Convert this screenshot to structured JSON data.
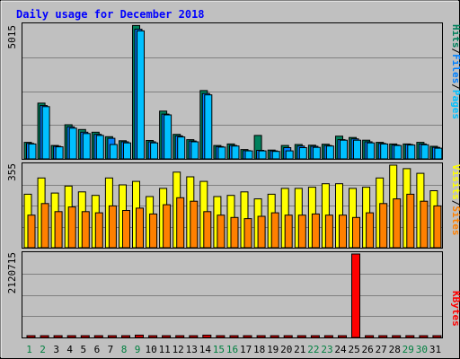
{
  "chart_data": [
    {
      "type": "bar",
      "panel": "top",
      "title": "Daily usage for December 2018",
      "ymax_label": "5015",
      "ylim": [
        0,
        5015
      ],
      "grid": true,
      "legend": [
        "Pages",
        "Files",
        "Hits"
      ],
      "categories": [
        "1",
        "2",
        "3",
        "4",
        "5",
        "6",
        "7",
        "8",
        "9",
        "10",
        "11",
        "12",
        "13",
        "14",
        "15",
        "16",
        "17",
        "18",
        "19",
        "20",
        "21",
        "22",
        "23",
        "24",
        "25",
        "26",
        "27",
        "28",
        "29",
        "30",
        "31"
      ],
      "series": [
        {
          "name": "Hits",
          "values": [
            620,
            2090,
            500,
            1280,
            1100,
            1000,
            830,
            680,
            5000,
            690,
            1790,
            920,
            720,
            2560,
            500,
            560,
            350,
            880,
            330,
            500,
            540,
            510,
            550,
            850,
            800,
            700,
            620,
            560,
            560,
            620,
            470
          ]
        },
        {
          "name": "Files",
          "values": [
            580,
            2000,
            470,
            1200,
            1000,
            920,
            770,
            640,
            4860,
            640,
            1680,
            860,
            670,
            2450,
            460,
            500,
            310,
            320,
            300,
            420,
            480,
            470,
            500,
            720,
            750,
            640,
            580,
            520,
            540,
            560,
            430
          ]
        },
        {
          "name": "Pages",
          "values": [
            560,
            1960,
            450,
            1150,
            950,
            880,
            540,
            600,
            4800,
            600,
            1650,
            820,
            640,
            2400,
            440,
            480,
            300,
            300,
            280,
            300,
            420,
            430,
            480,
            700,
            700,
            600,
            560,
            500,
            520,
            530,
            400
          ]
        }
      ]
    },
    {
      "type": "bar",
      "panel": "middle",
      "ymax_label": "355",
      "ylim": [
        0,
        355
      ],
      "grid": true,
      "legend": [
        "Sites",
        "Visits"
      ],
      "categories": [
        "1",
        "2",
        "3",
        "4",
        "5",
        "6",
        "7",
        "8",
        "9",
        "10",
        "11",
        "12",
        "13",
        "14",
        "15",
        "16",
        "17",
        "18",
        "19",
        "20",
        "21",
        "22",
        "23",
        "24",
        "25",
        "26",
        "27",
        "28",
        "29",
        "30",
        "31"
      ],
      "series": [
        {
          "name": "Visits",
          "values": [
            230,
            300,
            235,
            265,
            240,
            225,
            300,
            270,
            285,
            220,
            255,
            325,
            305,
            285,
            220,
            225,
            240,
            210,
            230,
            255,
            255,
            260,
            275,
            275,
            255,
            260,
            300,
            355,
            340,
            320,
            245
          ]
        },
        {
          "name": "Sites",
          "values": [
            140,
            190,
            155,
            175,
            155,
            150,
            180,
            160,
            170,
            145,
            185,
            215,
            200,
            155,
            140,
            130,
            125,
            135,
            150,
            140,
            140,
            145,
            140,
            140,
            130,
            150,
            190,
            210,
            230,
            200,
            180
          ]
        }
      ]
    },
    {
      "type": "bar",
      "panel": "bottom",
      "ymax_label": "2120715",
      "ylim": [
        0,
        2120715
      ],
      "grid": true,
      "legend": [
        "KBytes"
      ],
      "categories": [
        "1",
        "2",
        "3",
        "4",
        "5",
        "6",
        "7",
        "8",
        "9",
        "10",
        "11",
        "12",
        "13",
        "14",
        "15",
        "16",
        "17",
        "18",
        "19",
        "20",
        "21",
        "22",
        "23",
        "24",
        "25",
        "26",
        "27",
        "28",
        "29",
        "30",
        "31"
      ],
      "series": [
        {
          "name": "KBytes",
          "values": [
            20000,
            20000,
            20000,
            20000,
            20000,
            20000,
            20000,
            20000,
            60000,
            20000,
            40000,
            20000,
            20000,
            60000,
            20000,
            20000,
            20000,
            20000,
            20000,
            20000,
            20000,
            20000,
            20000,
            20000,
            2120715,
            20000,
            20000,
            20000,
            20000,
            20000,
            20000
          ]
        }
      ]
    }
  ],
  "x_label_colors": [
    "#008040",
    "#008040",
    "#000000",
    "#000000",
    "#000000",
    "#000000",
    "#000000",
    "#008040",
    "#008040",
    "#000000",
    "#000000",
    "#000000",
    "#000000",
    "#000000",
    "#008040",
    "#008040",
    "#000000",
    "#000000",
    "#000000",
    "#000000",
    "#000000",
    "#008040",
    "#008040",
    "#000000",
    "#000000",
    "#000000",
    "#000000",
    "#000000",
    "#008040",
    "#008040",
    "#000000"
  ],
  "colors": {
    "hits": "#00805c",
    "files": "#0080ff",
    "pages": "#00c0ff",
    "visits": "#ffff00",
    "sites": "#ff8000",
    "kbytes": "#ff0000",
    "title": "#0000ff",
    "plot_bg": "#c0c0c0",
    "frame_bg": "#c0c0c0"
  }
}
